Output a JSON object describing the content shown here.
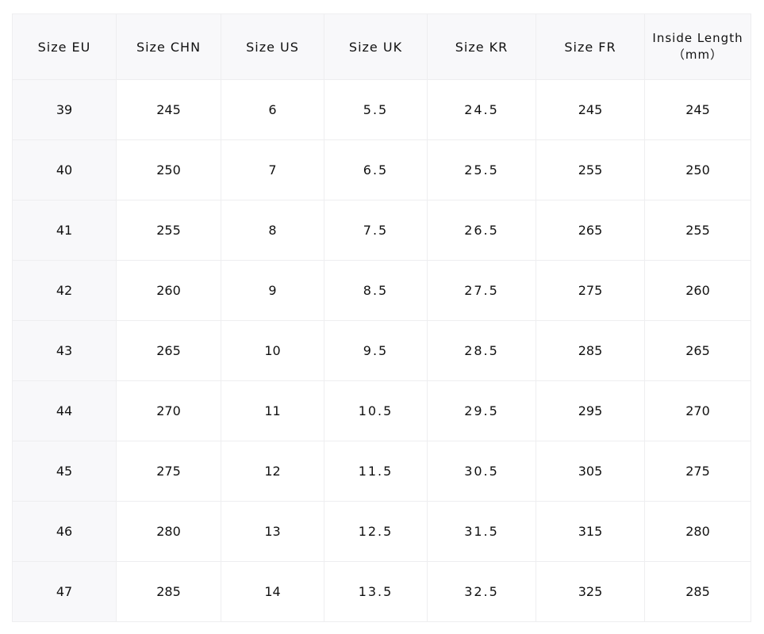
{
  "table": {
    "headers": [
      "Size EU",
      "Size CHN",
      "Size US",
      "Size UK",
      "Size KR",
      "Size FR",
      "Inside Length",
      "（mm）"
    ],
    "rows": [
      [
        "39",
        "245",
        "6",
        "5.5",
        "24.5",
        "245",
        "245"
      ],
      [
        "40",
        "250",
        "7",
        "6.5",
        "25.5",
        "255",
        "250"
      ],
      [
        "41",
        "255",
        "8",
        "7.5",
        "26.5",
        "265",
        "255"
      ],
      [
        "42",
        "260",
        "9",
        "8.5",
        "27.5",
        "275",
        "260"
      ],
      [
        "43",
        "265",
        "10",
        "9.5",
        "28.5",
        "285",
        "265"
      ],
      [
        "44",
        "270",
        "11",
        "10.5",
        "29.5",
        "295",
        "270"
      ],
      [
        "45",
        "275",
        "12",
        "11.5",
        "30.5",
        "305",
        "275"
      ],
      [
        "46",
        "280",
        "13",
        "12.5",
        "31.5",
        "315",
        "280"
      ],
      [
        "47",
        "285",
        "14",
        "13.5",
        "32.5",
        "325",
        "285"
      ]
    ]
  }
}
